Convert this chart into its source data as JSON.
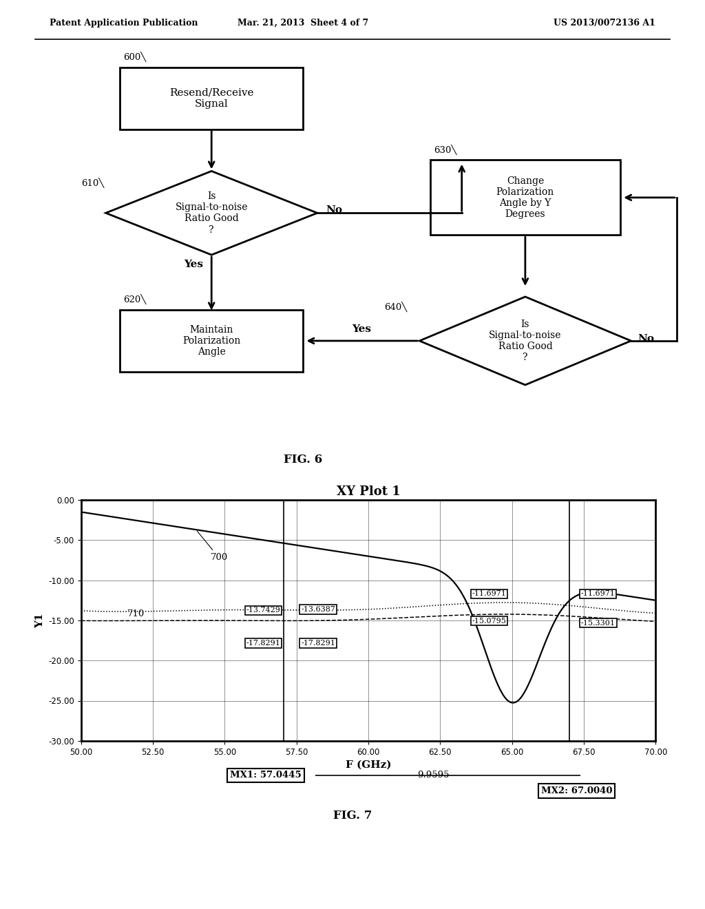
{
  "page_header_left": "Patent Application Publication",
  "page_header_mid": "Mar. 21, 2013  Sheet 4 of 7",
  "page_header_right": "US 2013/0072136 A1",
  "fig6_label": "FIG. 6",
  "fig7_label": "FIG. 7",
  "flowchart": {
    "box600_label": "Resend/Receive\nSignal",
    "box600_num": "600",
    "diamond610_label": "Is\nSignal-to-noise\nRatio Good\n?",
    "diamond610_num": "610",
    "box620_label": "Maintain\nPolarization\nAngle",
    "box620_num": "620",
    "box630_label": "Change\nPolarization\nAngle by Y\nDegrees",
    "box630_num": "630",
    "diamond640_label": "Is\nSignal-to-noise\nRatio Good\n?",
    "diamond640_num": "640",
    "arrow_no_610": "No",
    "arrow_yes_610": "Yes",
    "arrow_yes_640": "Yes",
    "arrow_no_640": "No"
  },
  "plot": {
    "title": "XY Plot 1",
    "xlabel": "F (GHz)",
    "ylabel": "Y1",
    "xlim": [
      50.0,
      70.0
    ],
    "ylim": [
      -30.0,
      0.0
    ],
    "xticks": [
      50.0,
      52.5,
      55.0,
      57.5,
      60.0,
      62.5,
      65.0,
      67.5,
      70.0
    ],
    "yticks": [
      0.0,
      -5.0,
      -10.0,
      -15.0,
      -20.0,
      -25.0,
      -30.0
    ],
    "label700": "700",
    "label710": "710",
    "mx1_label": "MX1: 57.0445",
    "mx2_label": "MX2: 67.0040",
    "bandwidth_label": "9.9595",
    "mx1_x": 57.0445,
    "mx2_x": 67.004
  }
}
